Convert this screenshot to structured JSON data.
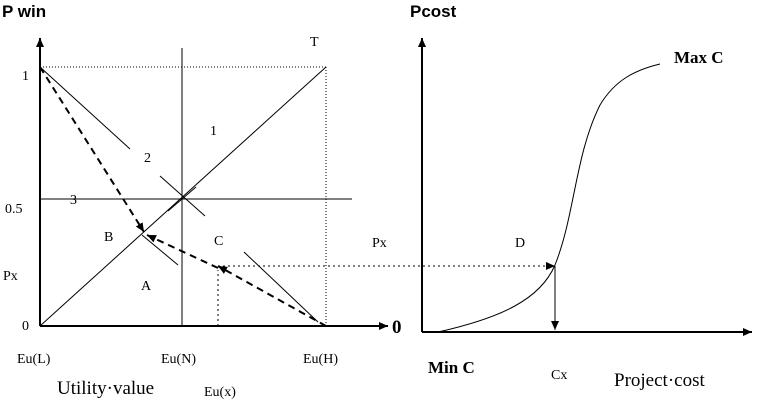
{
  "left_chart": {
    "y_axis_title": "P win",
    "x_axis_title": "Utility·value",
    "y_ticks": {
      "one": "1",
      "half": "0.5",
      "px": "Px",
      "zero": "0"
    },
    "x_ticks": {
      "low": "Eu(L)",
      "neutral": "Eu(N)",
      "high": "Eu(H)",
      "x": "Eu(x)"
    },
    "line_labels": {
      "t": "T",
      "one": "1",
      "two": "2",
      "three": "3"
    },
    "region_labels": {
      "a": "A",
      "b": "B",
      "c": "C"
    }
  },
  "right_chart": {
    "y_axis_title": "Pcost",
    "x_axis_title": "Project·cost",
    "curve_top_label": "Max C",
    "curve_bottom_label": "Min C",
    "origin_label": "0",
    "px_label": "Px",
    "point_label": "D",
    "cost_label": "Cx"
  },
  "colors": {
    "ink": "#000000",
    "background": "#ffffff"
  }
}
